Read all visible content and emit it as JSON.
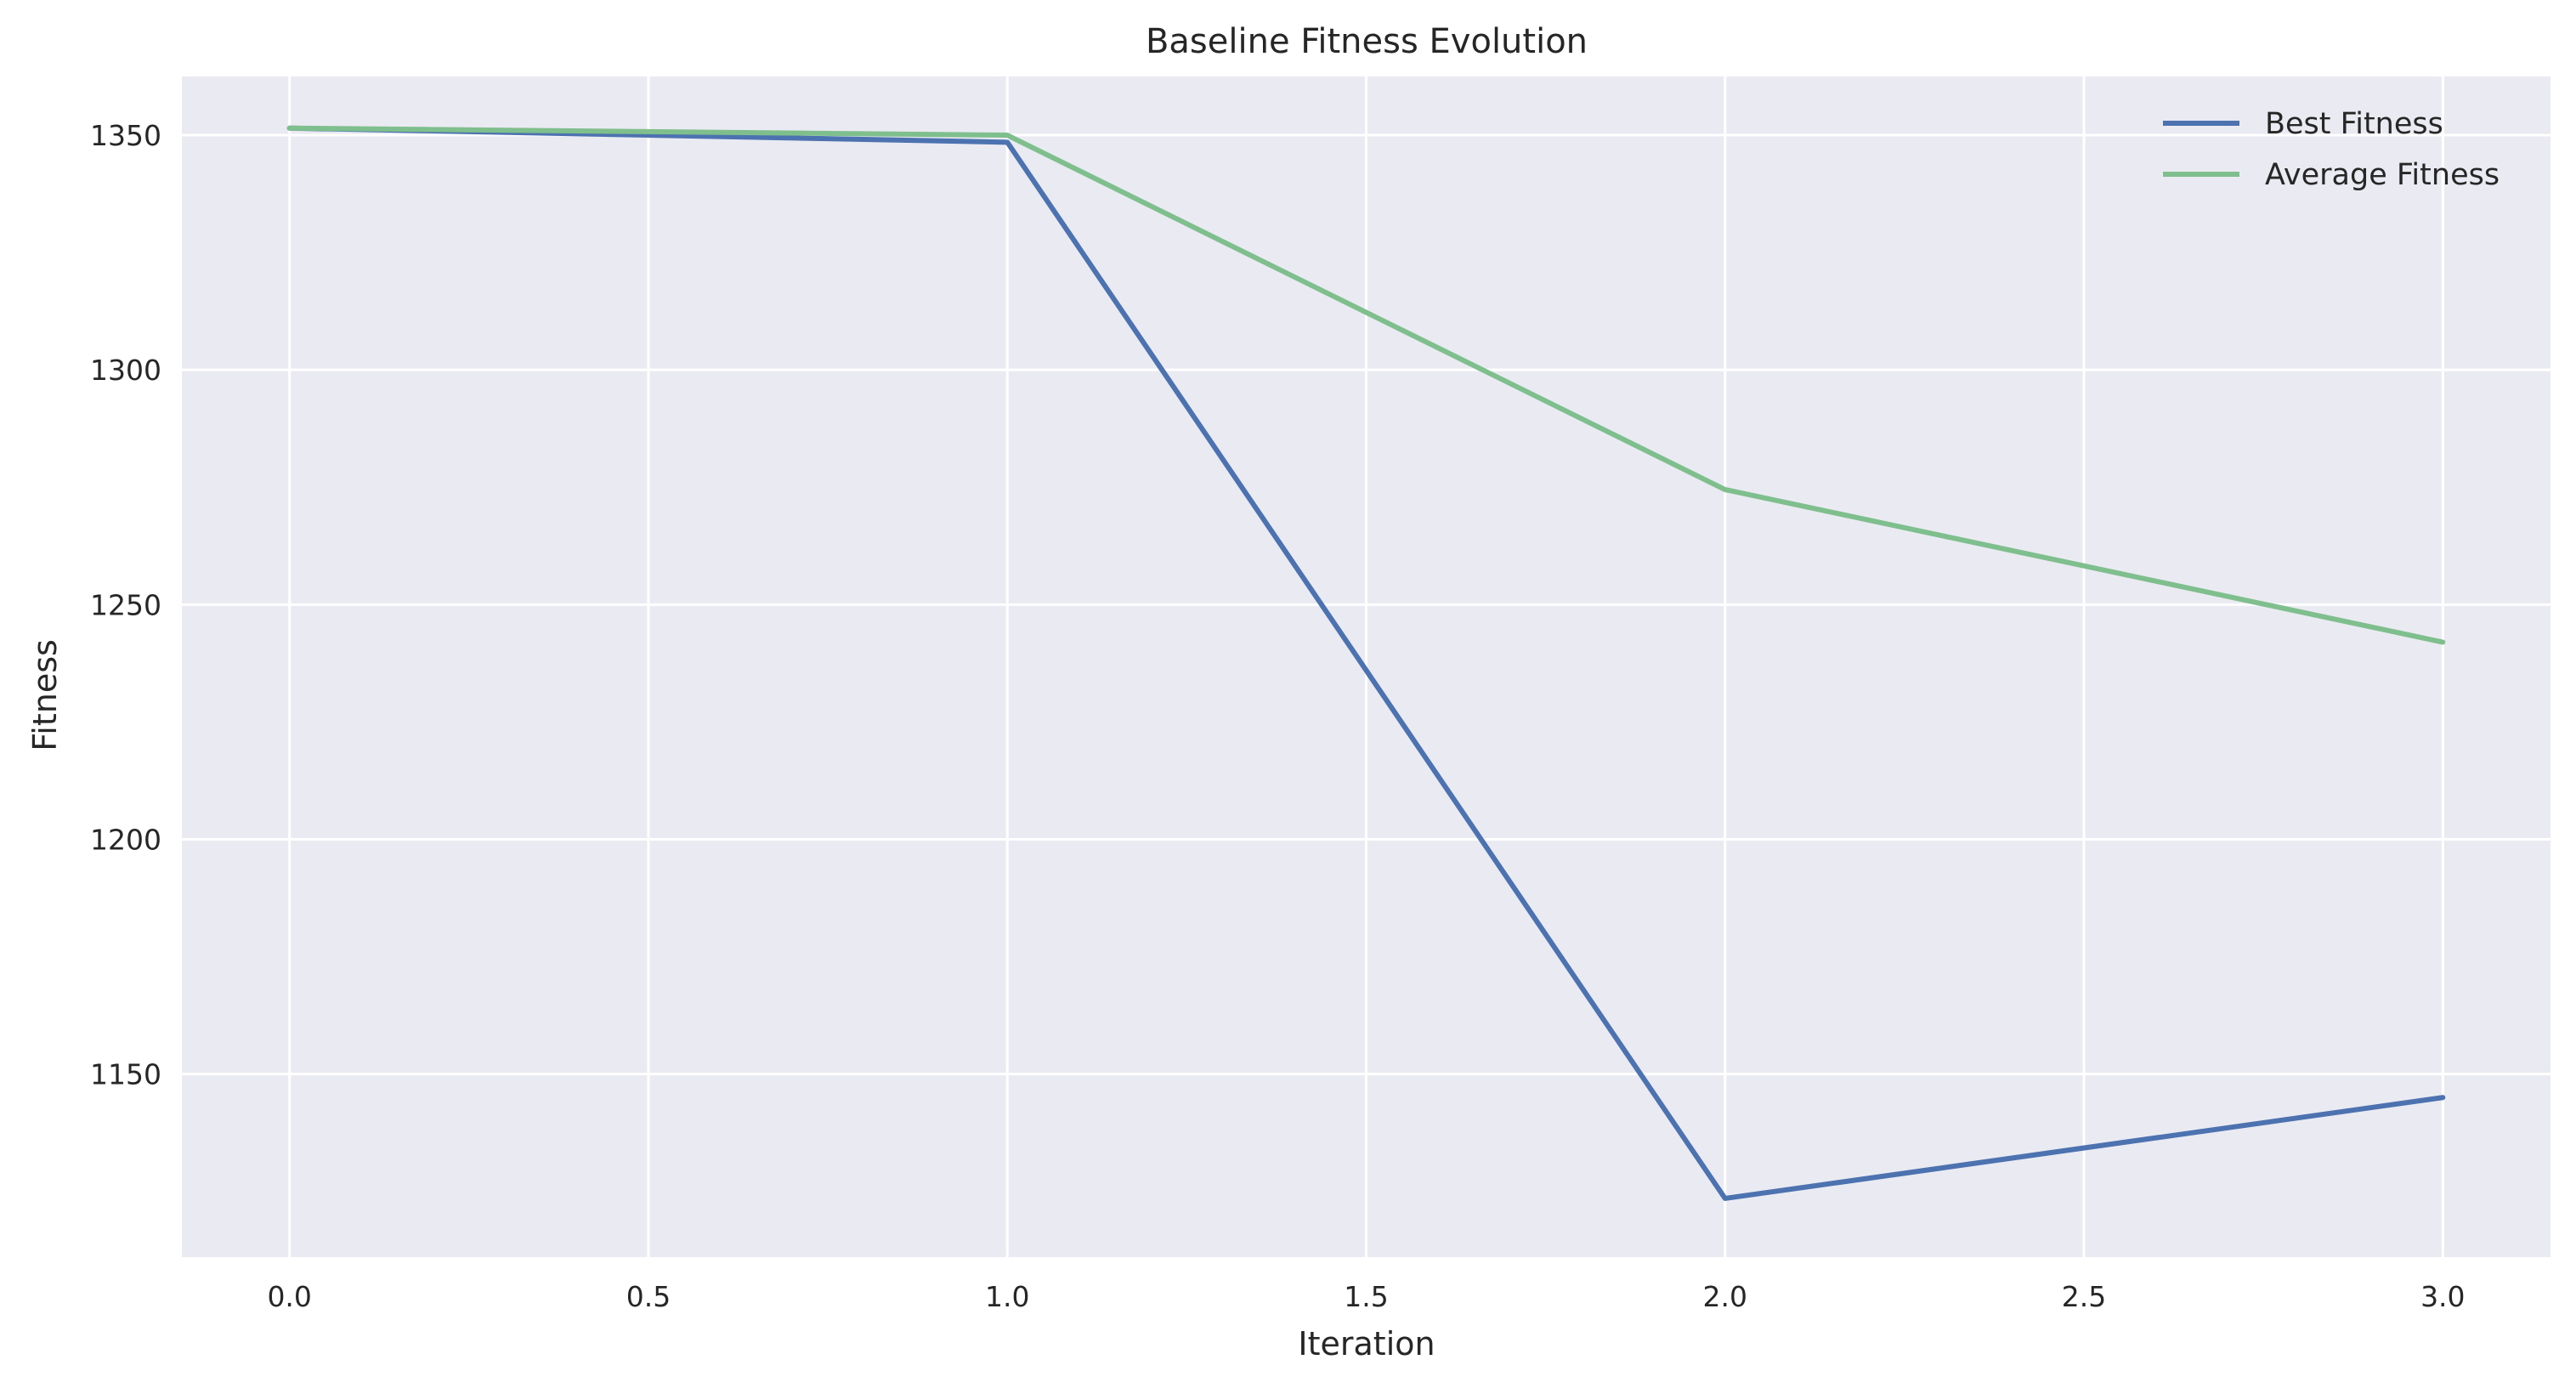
{
  "chart_data": {
    "type": "line",
    "title": "Baseline Fitness Evolution",
    "xlabel": "Iteration",
    "ylabel": "Fitness",
    "xlim": [
      -0.15,
      3.15
    ],
    "ylim": [
      1111,
      1362.5
    ],
    "xticks": [
      0.0,
      0.5,
      1.0,
      1.5,
      2.0,
      2.5,
      3.0
    ],
    "xtick_labels": [
      "0.0",
      "0.5",
      "1.0",
      "1.5",
      "2.0",
      "2.5",
      "3.0"
    ],
    "yticks": [
      1150,
      1200,
      1250,
      1300,
      1350
    ],
    "ytick_labels": [
      "1150",
      "1200",
      "1250",
      "1300",
      "1350"
    ],
    "grid": true,
    "legend_position": "top-right",
    "background_color": "#EAEAF2",
    "grid_color": "#FFFFFF",
    "series": [
      {
        "name": "Best Fitness",
        "color": "#4C72B0",
        "x": [
          0,
          1,
          2,
          3
        ],
        "y": [
          1351.5,
          1348.5,
          1123.5,
          1145
        ]
      },
      {
        "name": "Average Fitness",
        "color": "#7FBF8E",
        "x": [
          0,
          1,
          2,
          3
        ],
        "y": [
          1351.5,
          1350.0,
          1274.5,
          1242
        ]
      }
    ]
  }
}
